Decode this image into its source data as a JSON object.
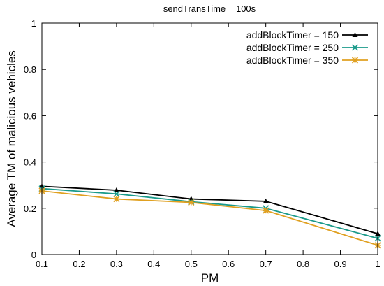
{
  "chart_data": {
    "type": "line",
    "title": "sendTransTime = 100s",
    "xlabel": "PM",
    "ylabel": "Average TM of malicious vehicles",
    "xlim": [
      0.1,
      1
    ],
    "ylim": [
      0,
      1
    ],
    "xticks": [
      "0.1",
      "0.2",
      "0.3",
      "0.4",
      "0.5",
      "0.6",
      "0.7",
      "0.8",
      "0.9",
      "1"
    ],
    "yticks": [
      "0",
      "0.2",
      "0.4",
      "0.6",
      "0.8",
      "1"
    ],
    "x": [
      0.1,
      0.3,
      0.5,
      0.7,
      1.0
    ],
    "series": [
      {
        "name": "addBlockTimer = 150",
        "values": [
          0.295,
          0.278,
          0.24,
          0.23,
          0.09
        ],
        "color": "#000000",
        "marker": "triangle"
      },
      {
        "name": "addBlockTimer = 250",
        "values": [
          0.285,
          0.262,
          0.228,
          0.2,
          0.07
        ],
        "color": "#1a9a8a",
        "marker": "x"
      },
      {
        "name": "addBlockTimer = 350",
        "values": [
          0.275,
          0.24,
          0.225,
          0.19,
          0.04
        ],
        "color": "#e0a020",
        "marker": "star"
      }
    ],
    "legend_position": "top-right",
    "grid": false
  }
}
